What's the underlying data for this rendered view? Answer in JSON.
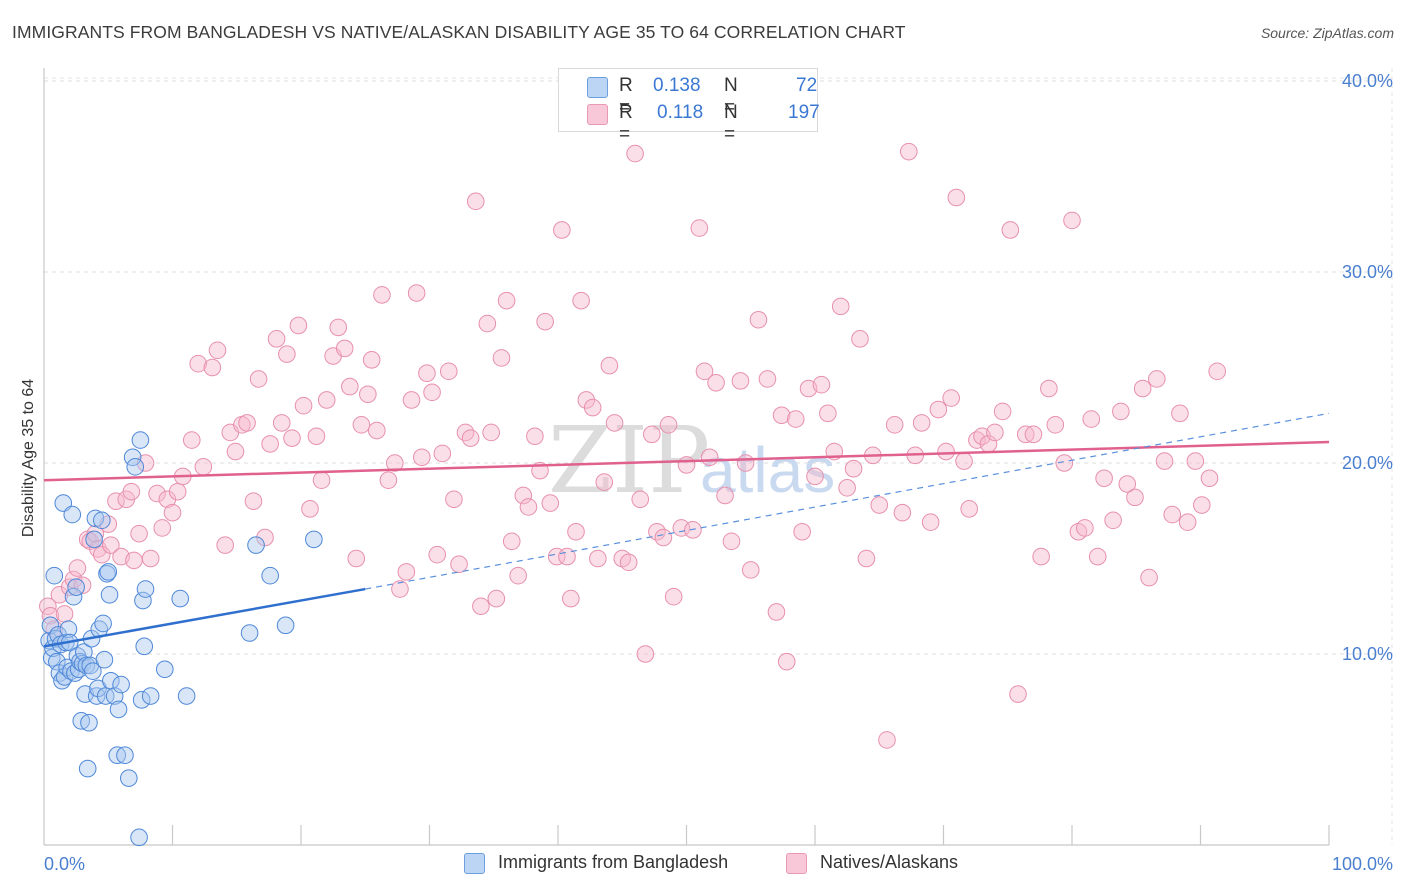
{
  "title": "IMMIGRANTS FROM BANGLADESH VS NATIVE/ALASKAN DISABILITY AGE 35 TO 64 CORRELATION CHART",
  "source": "Source: ZipAtlas.com",
  "watermark": {
    "a": "ZIP",
    "b": "atlas"
  },
  "colors": {
    "blue": "#3a78d4",
    "blue_fill": "#a8c8f0",
    "pink": "#e0608e",
    "pink_fill": "#f6b8cc"
  },
  "legend_top": {
    "rows": [
      {
        "r_label": "R =",
        "r_value": "0.138",
        "n_label": "N =",
        "n_value": "72"
      },
      {
        "r_label": "R =",
        "r_value": "0.118",
        "n_label": "N =",
        "n_value": "197"
      }
    ]
  },
  "legend_bottom": [
    "Immigrants from Bangladesh",
    "Natives/Alaskans"
  ],
  "chart_data": {
    "type": "scatter",
    "title": "IMMIGRANTS FROM BANGLADESH VS NATIVE/ALASKAN DISABILITY AGE 35 TO 64 CORRELATION CHART",
    "xlabel": "",
    "ylabel": "Disability Age 35 to 64",
    "xlim": [
      0,
      100
    ],
    "ylim": [
      0,
      42
    ],
    "x_tick_labels": [
      "0.0%",
      "100.0%"
    ],
    "y_ticks": [
      10,
      20,
      30,
      40
    ],
    "y_tick_labels": [
      "10.0%",
      "20.0%",
      "30.0%",
      "40.0%"
    ],
    "series": [
      {
        "name": "Immigrants from Bangladesh",
        "r": 0.138,
        "n": 72,
        "trend_solid": [
          [
            0,
            10.4
          ],
          [
            25,
            13.4
          ]
        ],
        "trend_dashed": [
          [
            25,
            13.4
          ],
          [
            100,
            22.6
          ]
        ],
        "points": [
          [
            0.4,
            10.7
          ],
          [
            0.5,
            11.5
          ],
          [
            0.6,
            9.8
          ],
          [
            0.7,
            10.3
          ],
          [
            0.8,
            14.1
          ],
          [
            0.9,
            10.8
          ],
          [
            1.0,
            9.6
          ],
          [
            1.1,
            11.0
          ],
          [
            1.2,
            9.0
          ],
          [
            1.3,
            10.5
          ],
          [
            1.4,
            8.6
          ],
          [
            1.5,
            17.9
          ],
          [
            1.6,
            8.8
          ],
          [
            1.7,
            10.6
          ],
          [
            1.8,
            9.3
          ],
          [
            1.9,
            11.3
          ],
          [
            2.0,
            10.6
          ],
          [
            2.1,
            9.1
          ],
          [
            2.2,
            17.3
          ],
          [
            2.3,
            13.0
          ],
          [
            2.4,
            9.0
          ],
          [
            2.5,
            13.5
          ],
          [
            2.6,
            9.9
          ],
          [
            2.7,
            9.2
          ],
          [
            2.8,
            9.6
          ],
          [
            2.9,
            6.5
          ],
          [
            3.0,
            9.5
          ],
          [
            3.1,
            10.1
          ],
          [
            3.2,
            7.9
          ],
          [
            3.3,
            9.4
          ],
          [
            3.4,
            4.0
          ],
          [
            3.5,
            6.4
          ],
          [
            3.6,
            9.4
          ],
          [
            3.7,
            10.8
          ],
          [
            3.8,
            9.1
          ],
          [
            3.9,
            16.0
          ],
          [
            4.0,
            17.1
          ],
          [
            4.1,
            7.8
          ],
          [
            4.2,
            8.2
          ],
          [
            4.3,
            11.3
          ],
          [
            4.5,
            17.0
          ],
          [
            4.6,
            11.6
          ],
          [
            4.7,
            9.7
          ],
          [
            4.8,
            7.8
          ],
          [
            4.9,
            14.2
          ],
          [
            5.0,
            14.3
          ],
          [
            5.1,
            13.1
          ],
          [
            5.2,
            8.6
          ],
          [
            5.5,
            7.8
          ],
          [
            5.7,
            4.7
          ],
          [
            5.8,
            7.1
          ],
          [
            6.0,
            8.4
          ],
          [
            6.3,
            4.7
          ],
          [
            6.6,
            3.5
          ],
          [
            6.9,
            20.3
          ],
          [
            7.1,
            19.8
          ],
          [
            7.4,
            0.4
          ],
          [
            7.5,
            21.2
          ],
          [
            7.6,
            7.6
          ],
          [
            7.7,
            12.8
          ],
          [
            7.8,
            10.4
          ],
          [
            7.9,
            13.4
          ],
          [
            8.3,
            7.8
          ],
          [
            9.4,
            9.2
          ],
          [
            10.6,
            12.9
          ],
          [
            11.1,
            7.8
          ],
          [
            16.0,
            11.1
          ],
          [
            16.5,
            15.7
          ],
          [
            17.6,
            14.1
          ],
          [
            18.8,
            11.5
          ],
          [
            21.0,
            16.0
          ]
        ]
      },
      {
        "name": "Natives/Alaskans",
        "r": 0.118,
        "n": 197,
        "trend_solid": [
          [
            0,
            19.1
          ],
          [
            100,
            21.1
          ]
        ],
        "points": [
          [
            0.3,
            12.5
          ],
          [
            0.5,
            12.0
          ],
          [
            0.8,
            11.3
          ],
          [
            1.2,
            13.1
          ],
          [
            1.6,
            12.1
          ],
          [
            2.0,
            13.5
          ],
          [
            2.3,
            13.9
          ],
          [
            2.6,
            14.5
          ],
          [
            3.0,
            13.6
          ],
          [
            3.4,
            16.0
          ],
          [
            3.6,
            15.9
          ],
          [
            4.0,
            16.3
          ],
          [
            4.2,
            15.5
          ],
          [
            4.5,
            15.2
          ],
          [
            5.0,
            16.8
          ],
          [
            5.2,
            15.7
          ],
          [
            5.6,
            18.0
          ],
          [
            6.0,
            15.1
          ],
          [
            6.4,
            18.1
          ],
          [
            6.8,
            18.5
          ],
          [
            7.0,
            14.9
          ],
          [
            7.4,
            16.3
          ],
          [
            7.9,
            20.0
          ],
          [
            8.3,
            15.0
          ],
          [
            8.8,
            18.4
          ],
          [
            9.2,
            16.6
          ],
          [
            9.6,
            18.1
          ],
          [
            10.0,
            17.4
          ],
          [
            10.4,
            18.5
          ],
          [
            10.8,
            19.3
          ],
          [
            11.5,
            21.2
          ],
          [
            12.0,
            25.2
          ],
          [
            12.4,
            19.8
          ],
          [
            13.1,
            25.0
          ],
          [
            13.5,
            25.9
          ],
          [
            14.1,
            15.7
          ],
          [
            14.5,
            21.6
          ],
          [
            14.9,
            20.6
          ],
          [
            15.4,
            22.0
          ],
          [
            15.8,
            22.1
          ],
          [
            16.3,
            18.0
          ],
          [
            16.7,
            24.4
          ],
          [
            17.2,
            16.1
          ],
          [
            17.6,
            21.0
          ],
          [
            18.1,
            26.5
          ],
          [
            18.5,
            22.1
          ],
          [
            18.9,
            25.7
          ],
          [
            19.3,
            21.3
          ],
          [
            19.8,
            27.2
          ],
          [
            20.2,
            23.0
          ],
          [
            20.7,
            17.6
          ],
          [
            21.2,
            21.4
          ],
          [
            21.6,
            19.1
          ],
          [
            22.0,
            23.3
          ],
          [
            22.5,
            25.6
          ],
          [
            22.9,
            27.1
          ],
          [
            23.4,
            26.0
          ],
          [
            23.8,
            24.0
          ],
          [
            24.3,
            15.0
          ],
          [
            24.7,
            22.0
          ],
          [
            25.2,
            23.6
          ],
          [
            25.5,
            25.4
          ],
          [
            25.9,
            21.7
          ],
          [
            26.3,
            28.8
          ],
          [
            26.8,
            19.1
          ],
          [
            27.3,
            20.0
          ],
          [
            27.7,
            13.4
          ],
          [
            28.2,
            14.3
          ],
          [
            28.6,
            23.3
          ],
          [
            29.0,
            28.9
          ],
          [
            29.4,
            20.3
          ],
          [
            29.8,
            24.7
          ],
          [
            30.2,
            23.7
          ],
          [
            30.6,
            15.2
          ],
          [
            31.0,
            20.5
          ],
          [
            31.5,
            24.8
          ],
          [
            31.9,
            18.1
          ],
          [
            32.3,
            14.7
          ],
          [
            32.8,
            21.6
          ],
          [
            33.2,
            21.3
          ],
          [
            33.6,
            33.7
          ],
          [
            34.0,
            12.5
          ],
          [
            34.5,
            27.3
          ],
          [
            34.8,
            21.6
          ],
          [
            35.2,
            12.9
          ],
          [
            35.6,
            25.5
          ],
          [
            36.0,
            28.5
          ],
          [
            36.4,
            15.9
          ],
          [
            36.9,
            14.1
          ],
          [
            37.3,
            18.3
          ],
          [
            37.7,
            17.7
          ],
          [
            38.2,
            21.4
          ],
          [
            38.6,
            19.6
          ],
          [
            39.0,
            27.4
          ],
          [
            39.4,
            17.9
          ],
          [
            39.9,
            15.1
          ],
          [
            40.3,
            32.2
          ],
          [
            40.7,
            15.1
          ],
          [
            41.0,
            12.9
          ],
          [
            41.4,
            16.4
          ],
          [
            41.8,
            28.5
          ],
          [
            42.2,
            23.3
          ],
          [
            42.7,
            22.9
          ],
          [
            43.1,
            15.0
          ],
          [
            43.6,
            19.0
          ],
          [
            44.0,
            25.1
          ],
          [
            44.4,
            22.1
          ],
          [
            45.0,
            15.0
          ],
          [
            45.5,
            14.8
          ],
          [
            46.0,
            36.2
          ],
          [
            46.4,
            18.1
          ],
          [
            46.8,
            10.0
          ],
          [
            47.3,
            21.5
          ],
          [
            47.7,
            16.4
          ],
          [
            48.2,
            16.1
          ],
          [
            48.6,
            22.0
          ],
          [
            49.0,
            13.0
          ],
          [
            49.6,
            16.6
          ],
          [
            50.0,
            19.9
          ],
          [
            50.5,
            16.5
          ],
          [
            51.0,
            32.3
          ],
          [
            51.4,
            24.8
          ],
          [
            51.8,
            20.3
          ],
          [
            52.3,
            24.2
          ],
          [
            53.0,
            18.3
          ],
          [
            53.5,
            15.9
          ],
          [
            54.2,
            24.3
          ],
          [
            54.6,
            20.0
          ],
          [
            55.0,
            14.4
          ],
          [
            55.6,
            27.5
          ],
          [
            56.3,
            24.4
          ],
          [
            57.0,
            12.2
          ],
          [
            57.4,
            22.5
          ],
          [
            57.8,
            9.6
          ],
          [
            58.5,
            22.3
          ],
          [
            59.0,
            16.4
          ],
          [
            59.5,
            23.9
          ],
          [
            60.0,
            19.3
          ],
          [
            60.5,
            24.1
          ],
          [
            61.0,
            22.6
          ],
          [
            61.5,
            20.6
          ],
          [
            62.0,
            28.2
          ],
          [
            62.5,
            18.7
          ],
          [
            63.0,
            19.7
          ],
          [
            63.5,
            26.5
          ],
          [
            64.0,
            15.0
          ],
          [
            64.5,
            20.4
          ],
          [
            65.0,
            17.8
          ],
          [
            65.6,
            5.5
          ],
          [
            66.2,
            22.0
          ],
          [
            66.8,
            17.4
          ],
          [
            67.3,
            36.3
          ],
          [
            67.8,
            20.4
          ],
          [
            68.3,
            22.1
          ],
          [
            69.0,
            16.9
          ],
          [
            69.6,
            22.8
          ],
          [
            70.2,
            20.6
          ],
          [
            70.6,
            23.4
          ],
          [
            71.0,
            33.9
          ],
          [
            71.6,
            20.1
          ],
          [
            72.0,
            17.6
          ],
          [
            72.6,
            21.2
          ],
          [
            73.0,
            21.4
          ],
          [
            73.5,
            21.0
          ],
          [
            74.0,
            21.6
          ],
          [
            74.6,
            22.7
          ],
          [
            75.2,
            32.2
          ],
          [
            75.8,
            7.9
          ],
          [
            76.4,
            21.5
          ],
          [
            77.0,
            21.5
          ],
          [
            77.6,
            15.1
          ],
          [
            78.2,
            23.9
          ],
          [
            78.7,
            22.0
          ],
          [
            79.4,
            20.0
          ],
          [
            80.0,
            32.7
          ],
          [
            80.5,
            16.4
          ],
          [
            81.0,
            16.6
          ],
          [
            81.5,
            22.3
          ],
          [
            82.0,
            15.1
          ],
          [
            82.5,
            19.2
          ],
          [
            83.2,
            17.0
          ],
          [
            83.8,
            22.7
          ],
          [
            84.3,
            18.9
          ],
          [
            84.9,
            18.2
          ],
          [
            85.5,
            23.9
          ],
          [
            86.0,
            14.0
          ],
          [
            86.6,
            24.4
          ],
          [
            87.2,
            20.1
          ],
          [
            87.8,
            17.3
          ],
          [
            88.4,
            22.6
          ],
          [
            89.0,
            16.9
          ],
          [
            89.6,
            20.1
          ],
          [
            90.1,
            17.8
          ],
          [
            90.7,
            19.2
          ],
          [
            91.3,
            24.8
          ]
        ]
      }
    ]
  }
}
